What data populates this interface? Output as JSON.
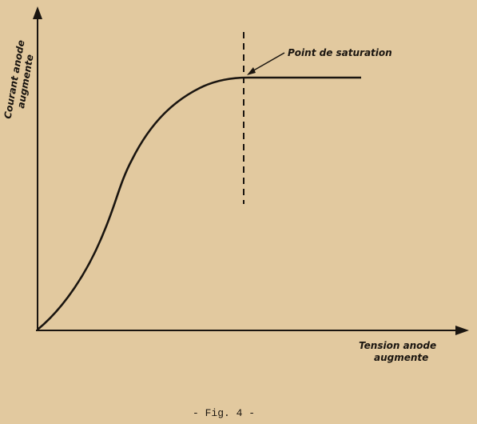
{
  "diagram": {
    "y_axis_label": [
      "Courant anode",
      "augmente"
    ],
    "x_axis_label": [
      "Tension anode",
      "augmente"
    ],
    "annotation": "Point de saturation",
    "caption": "- Fig. 4 -"
  }
}
